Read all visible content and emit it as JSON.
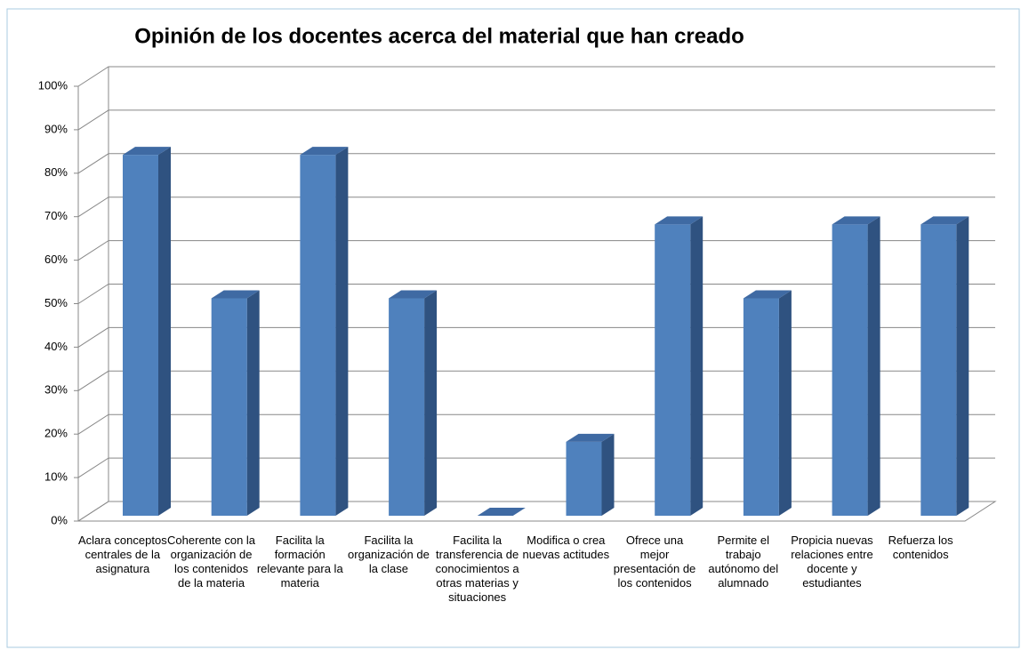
{
  "chart_data": {
    "type": "bar3d",
    "title": "Opinión de los docentes acerca del material que han creado",
    "categories": [
      "Aclara conceptos centrales de la asignatura",
      "Coherente con la organización de los contenidos de la materia",
      "Facilita la formación relevante para la materia",
      "Facilita la organización de la clase",
      "Facilita la transferencia de conocimientos a otras materias y situaciones",
      "Modifica o crea nuevas actitudes",
      "Ofrece una mejor presentación de los contenidos",
      "Permite el trabajo autónomo del alumnado",
      "Propicia nuevas relaciones entre docente y estudiantes",
      "Refuerza los contenidos"
    ],
    "values": [
      83,
      50,
      83,
      50,
      0,
      17,
      67,
      50,
      67,
      67
    ],
    "color": "#4f81bd",
    "ylim": [
      0,
      100
    ],
    "yticks": [
      {
        "value": 0,
        "label": "0%"
      },
      {
        "value": 10,
        "label": "10%"
      },
      {
        "value": 20,
        "label": "20%"
      },
      {
        "value": 30,
        "label": "30%"
      },
      {
        "value": 40,
        "label": "40%"
      },
      {
        "value": 50,
        "label": "50%"
      },
      {
        "value": 60,
        "label": "60%"
      },
      {
        "value": 70,
        "label": "70%"
      },
      {
        "value": 80,
        "label": "80%"
      },
      {
        "value": 90,
        "label": "90%"
      },
      {
        "value": 100,
        "label": "100%"
      }
    ],
    "grid": true
  }
}
